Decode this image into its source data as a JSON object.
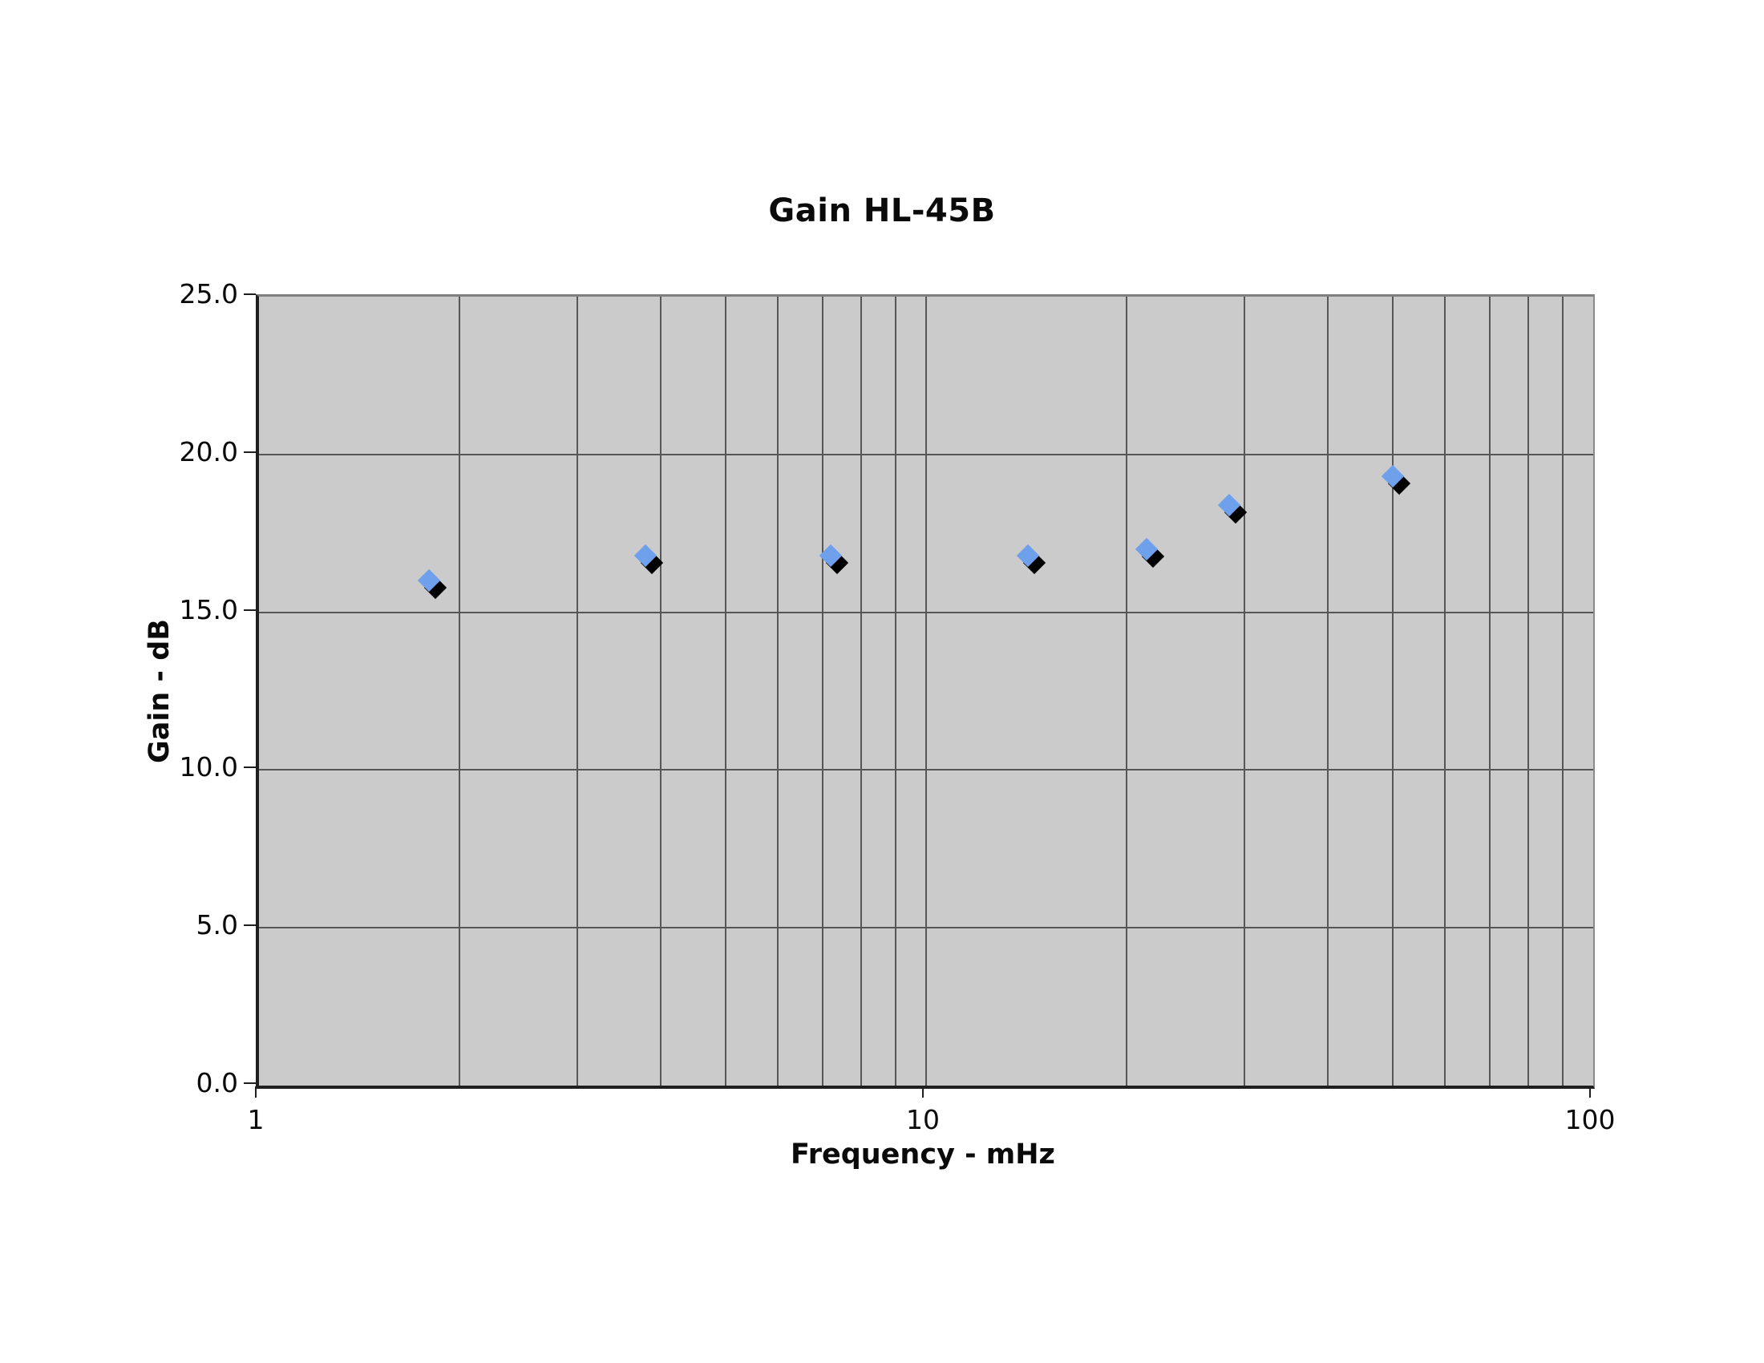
{
  "chart_data": {
    "type": "scatter",
    "title": "Gain HL-45B",
    "xlabel": "Frequency - mHz",
    "ylabel": "Gain - dB",
    "x_scale": "log",
    "xlim": [
      1,
      100
    ],
    "ylim": [
      0,
      25
    ],
    "grid": true,
    "legend": "none",
    "x_ticks": [
      {
        "value": 1,
        "label": "1"
      },
      {
        "value": 10,
        "label": "10"
      },
      {
        "value": 100,
        "label": "100"
      }
    ],
    "y_ticks": [
      {
        "value": 25,
        "label": "25.0"
      },
      {
        "value": 20,
        "label": "20.0"
      },
      {
        "value": 15,
        "label": "15.0"
      },
      {
        "value": 10,
        "label": "10.0"
      },
      {
        "value": 5,
        "label": "5.0"
      },
      {
        "value": 0,
        "label": "0.0"
      }
    ],
    "x_gridlines": [
      2,
      3,
      4,
      5,
      6,
      7,
      8,
      9,
      10,
      20,
      30,
      40,
      50,
      60,
      70,
      80,
      90
    ],
    "y_gridlines": [
      5,
      10,
      15,
      20
    ],
    "series": [
      {
        "marker": "diamond",
        "marker_color": "#6FA0EC",
        "marker_shadow": true,
        "shadow_color": "#000000",
        "points": [
          {
            "x": 1.8,
            "y": 16.0
          },
          {
            "x": 3.8,
            "y": 16.8
          },
          {
            "x": 7.2,
            "y": 16.8
          },
          {
            "x": 14.2,
            "y": 16.8
          },
          {
            "x": 21.4,
            "y": 17.0
          },
          {
            "x": 28.5,
            "y": 18.4
          },
          {
            "x": 50.0,
            "y": 19.3
          }
        ]
      }
    ]
  },
  "colors": {
    "plot_background": "#CBCBCB",
    "gridline": "#565656",
    "axis_line": "#1F1F1F",
    "border_light": "#7F7F7F",
    "page_background": "#FFFFFF",
    "text": "#0A0A0A"
  }
}
